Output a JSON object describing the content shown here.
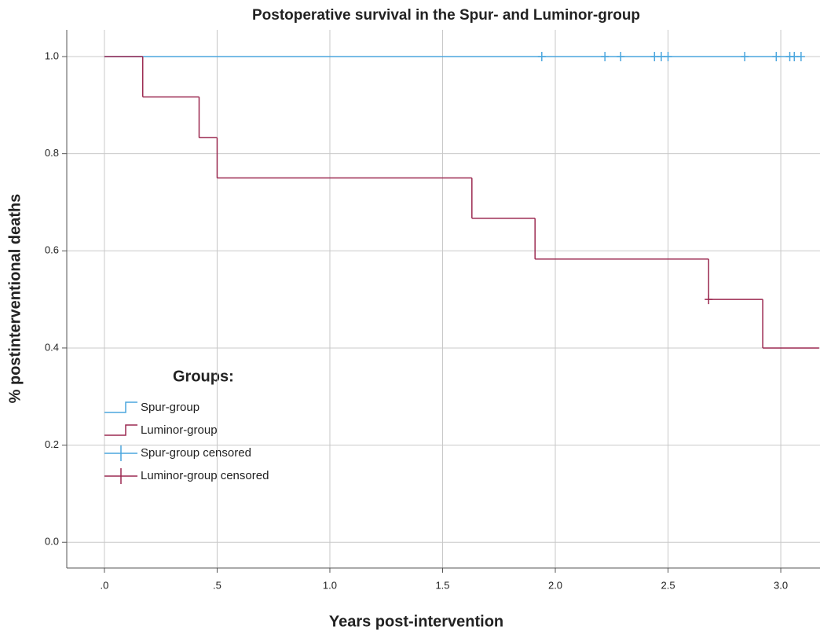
{
  "chart_data": {
    "type": "survival",
    "title": "Postoperative survival in the Spur- and Luminor-group",
    "x_label": "Years post-intervention",
    "y_label": "% postinterventional deaths",
    "legend_title": "Groups:",
    "legend_position": "lower left",
    "grid": true,
    "xlim": [
      -0.167,
      3.174
    ],
    "ylim": [
      -0.053,
      1.055
    ],
    "xticks": [
      {
        "value": 0,
        "label": ".0"
      },
      {
        "value": 0.5,
        "label": ".5"
      },
      {
        "value": 1,
        "label": "1.0"
      },
      {
        "value": 1.5,
        "label": "1.5"
      },
      {
        "value": 2,
        "label": "2.0"
      },
      {
        "value": 2.5,
        "label": "2.5"
      },
      {
        "value": 3,
        "label": "3.0"
      }
    ],
    "yticks": [
      {
        "value": 0,
        "label": "0.0"
      },
      {
        "value": 0.2,
        "label": "0.2"
      },
      {
        "value": 0.4,
        "label": "0.4"
      },
      {
        "value": 0.6,
        "label": "0.6"
      },
      {
        "value": 0.8,
        "label": "0.8"
      },
      {
        "value": 1,
        "label": "1.0"
      }
    ],
    "series": [
      {
        "name": "Spur-group",
        "color": "#4ba6de",
        "kind": "step",
        "x": [
          0,
          3.09
        ],
        "values": [
          1.0,
          1.0
        ]
      },
      {
        "name": "Luminor-group",
        "color": "#9b2950",
        "kind": "step",
        "x": [
          0,
          0.17,
          0.42,
          0.5,
          1.63,
          1.91,
          2.68,
          2.92,
          3.17
        ],
        "values": [
          1.0,
          0.917,
          0.833,
          0.75,
          0.667,
          0.583,
          0.5,
          0.4,
          0.4
        ]
      },
      {
        "name": "Spur-group censored",
        "color": "#4ba6de",
        "kind": "censor",
        "x": [
          1.94,
          2.22,
          2.29,
          2.44,
          2.47,
          2.5,
          2.84,
          2.98,
          3.04,
          3.06,
          3.09
        ],
        "values": [
          1,
          1,
          1,
          1,
          1,
          1,
          1,
          1,
          1,
          1,
          1
        ]
      },
      {
        "name": "Luminor-group censored",
        "color": "#9b2950",
        "kind": "censor",
        "x": [
          2.68
        ],
        "values": [
          0.5
        ]
      }
    ]
  }
}
